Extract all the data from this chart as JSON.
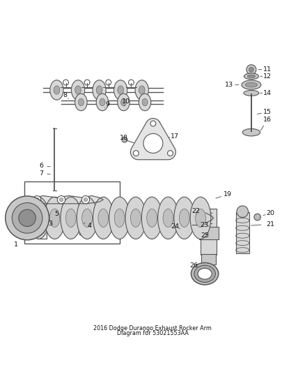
{
  "title1": "2016 Dodge Durango Exhaust Rocker Arm",
  "title2": "Diagram for 53021553AA",
  "background_color": "#ffffff",
  "line_color": "#555555",
  "text_color": "#000000",
  "fig_width": 4.38,
  "fig_height": 5.33,
  "dpi": 100
}
